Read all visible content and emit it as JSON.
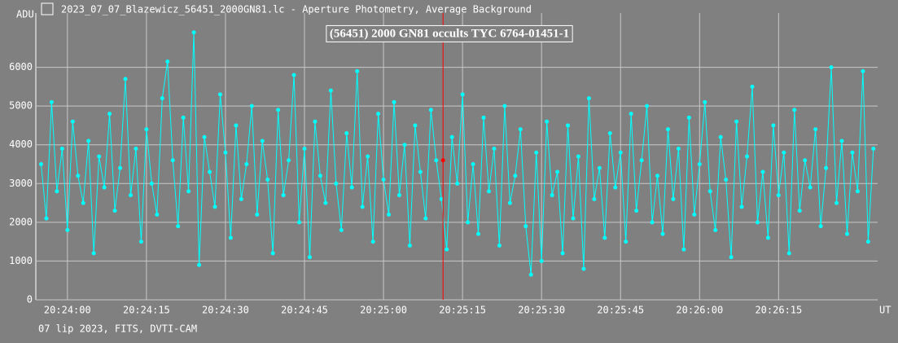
{
  "header": {
    "title": "2023_07_07_Blazewicz_56451_2000GN81.lc - Aperture Photometry, Average Background"
  },
  "footer": "07 lip 2023, FITS, DVTI-CAM",
  "chart_data": {
    "type": "line",
    "title": "(56451) 2000 GN81 occults TYC 6764-01451-1",
    "y_label": "ADU",
    "x_label": "UT",
    "color": "#00ffff",
    "grid": true,
    "xlim": [
      73434,
      73593.8
    ],
    "ylim": [
      0,
      7400
    ],
    "yticks": [
      0,
      1000,
      2000,
      3000,
      4000,
      5000,
      6000
    ],
    "xticks": [
      {
        "value": 73440,
        "label": "20:24:00"
      },
      {
        "value": 73455,
        "label": "20:24:15"
      },
      {
        "value": 73470,
        "label": "20:24:30"
      },
      {
        "value": 73485,
        "label": "20:24:45"
      },
      {
        "value": 73500,
        "label": "20:25:00"
      },
      {
        "value": 73515,
        "label": "20:25:15"
      },
      {
        "value": 73530,
        "label": "20:25:30"
      },
      {
        "value": 73545,
        "label": "20:25:45"
      },
      {
        "value": 73560,
        "label": "20:26:00"
      },
      {
        "value": 73575,
        "label": "20:26:15"
      }
    ],
    "cursor": {
      "x": 73511.3,
      "y": 3600,
      "color": "#ff0000"
    },
    "x": [
      73435,
      73436,
      73437,
      73438,
      73439,
      73440,
      73441,
      73442,
      73443,
      73444,
      73445,
      73446,
      73447,
      73448,
      73449,
      73450,
      73451,
      73452,
      73453,
      73454,
      73455,
      73456,
      73457,
      73458,
      73459,
      73460,
      73461,
      73462,
      73463,
      73464,
      73465,
      73466,
      73467,
      73468,
      73469,
      73470,
      73471,
      73472,
      73473,
      73474,
      73475,
      73476,
      73477,
      73478,
      73479,
      73480,
      73481,
      73482,
      73483,
      73484,
      73485,
      73486,
      73487,
      73488,
      73489,
      73490,
      73491,
      73492,
      73493,
      73494,
      73495,
      73496,
      73497,
      73498,
      73499,
      73500,
      73501,
      73502,
      73503,
      73504,
      73505,
      73506,
      73507,
      73508,
      73509,
      73510,
      73511,
      73512,
      73513,
      73514,
      73515,
      73516,
      73517,
      73518,
      73519,
      73520,
      73521,
      73522,
      73523,
      73524,
      73525,
      73526,
      73527,
      73528,
      73529,
      73530,
      73531,
      73532,
      73533,
      73534,
      73535,
      73536,
      73537,
      73538,
      73539,
      73540,
      73541,
      73542,
      73543,
      73544,
      73545,
      73546,
      73547,
      73548,
      73549,
      73550,
      73551,
      73552,
      73553,
      73554,
      73555,
      73556,
      73557,
      73558,
      73559,
      73560,
      73561,
      73562,
      73563,
      73564,
      73565,
      73566,
      73567,
      73568,
      73569,
      73570,
      73571,
      73572,
      73573,
      73574,
      73575,
      73576,
      73577,
      73578,
      73579,
      73580,
      73581,
      73582,
      73583,
      73584,
      73585,
      73586,
      73587,
      73588,
      73589,
      73590,
      73591,
      73592,
      73593
    ],
    "values": [
      3500,
      2100,
      5100,
      2800,
      3900,
      1800,
      4600,
      3200,
      2500,
      4100,
      1200,
      3700,
      2900,
      4800,
      2300,
      3400,
      5700,
      2700,
      3900,
      1500,
      4400,
      3000,
      2200,
      5200,
      6150,
      3600,
      1900,
      4700,
      2800,
      6900,
      900,
      4200,
      3300,
      2400,
      5300,
      3800,
      1600,
      4500,
      2600,
      3500,
      5000,
      2200,
      4100,
      3100,
      1200,
      4900,
      2700,
      3600,
      5800,
      2000,
      3900,
      1100,
      4600,
      3200,
      2500,
      5400,
      3000,
      1800,
      4300,
      2900,
      5900,
      2400,
      3700,
      1500,
      4800,
      3100,
      2200,
      5100,
      2700,
      4000,
      1400,
      4500,
      3300,
      2100,
      4900,
      3600,
      2600,
      1300,
      4200,
      3000,
      5300,
      2000,
      3500,
      1700,
      4700,
      2800,
      3900,
      1400,
      5000,
      2500,
      3200,
      4400,
      1900,
      650,
      3800,
      1000,
      4600,
      2700,
      3300,
      1200,
      4500,
      2100,
      3700,
      800,
      5200,
      2600,
      3400,
      1600,
      4300,
      2900,
      3800,
      1500,
      4800,
      2300,
      3600,
      5000,
      2000,
      3200,
      1700,
      4400,
      2600,
      3900,
      1300,
      4700,
      2200,
      3500,
      5100,
      2800,
      1800,
      4200,
      3100,
      1100,
      4600,
      2400,
      3700,
      5500,
      2000,
      3300,
      1600,
      4500,
      2700,
      3800,
      1200,
      4900,
      2300,
      3600,
      2900,
      4400,
      1900,
      3400,
      6000,
      2500,
      4100,
      1700,
      3800,
      2800,
      5900,
      1500,
      3900
    ]
  }
}
